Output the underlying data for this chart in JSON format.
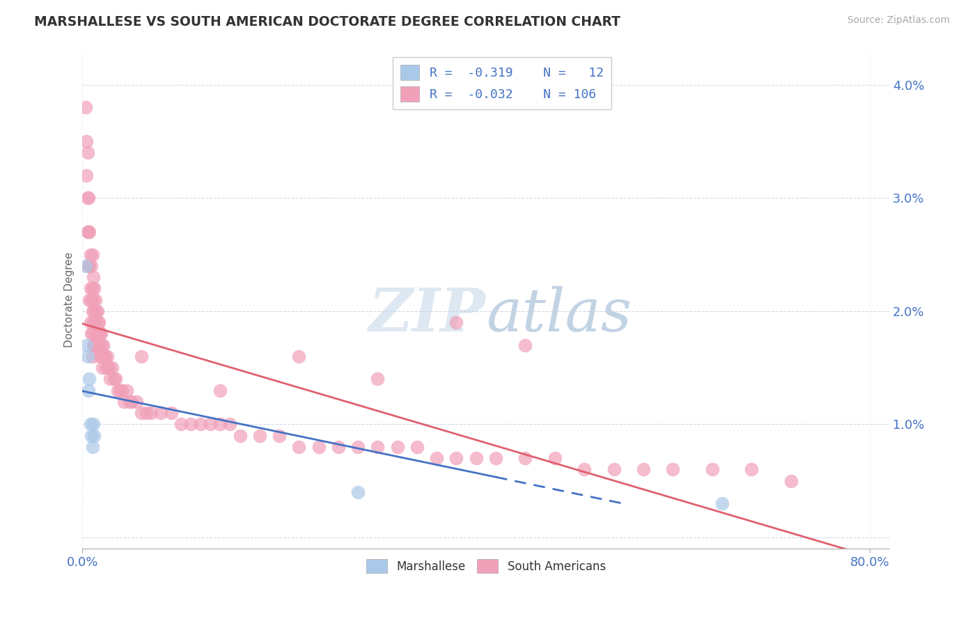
{
  "title": "MARSHALLESE VS SOUTH AMERICAN DOCTORATE DEGREE CORRELATION CHART",
  "source": "Source: ZipAtlas.com",
  "ylabel": "Doctorate Degree",
  "xlim": [
    0.0,
    0.82
  ],
  "ylim": [
    -0.001,
    0.043
  ],
  "xtick_positions": [
    0.0,
    0.8
  ],
  "xtick_labels": [
    "0.0%",
    "80.0%"
  ],
  "ytick_positions": [
    0.0,
    0.01,
    0.02,
    0.03,
    0.04
  ],
  "ytick_labels": [
    "",
    "1.0%",
    "2.0%",
    "3.0%",
    "4.0%"
  ],
  "color_marshallese_dot": "#aac8e8",
  "color_south_american_dot": "#f0a0b8",
  "color_line_marshallese": "#4472c4",
  "color_line_south_american": "#e06070",
  "color_grid": "#c8d4e4",
  "color_title": "#333333",
  "color_axis_text": "#4472c4",
  "legend_r1": "R =  -0.319",
  "legend_n1": "N =   12",
  "legend_r2": "R =  -0.032",
  "legend_n2": "N = 106",
  "watermark_color": "#dce6f0",
  "marsh_x": [
    0.003,
    0.004,
    0.005,
    0.006,
    0.007,
    0.008,
    0.009,
    0.01,
    0.011,
    0.012,
    0.28,
    0.65
  ],
  "marsh_y": [
    0.024,
    0.017,
    0.016,
    0.013,
    0.014,
    0.01,
    0.009,
    0.008,
    0.01,
    0.009,
    0.004,
    0.003
  ],
  "sa_x": [
    0.003,
    0.004,
    0.004,
    0.005,
    0.005,
    0.005,
    0.006,
    0.006,
    0.006,
    0.007,
    0.007,
    0.007,
    0.008,
    0.008,
    0.008,
    0.009,
    0.009,
    0.009,
    0.01,
    0.01,
    0.01,
    0.01,
    0.01,
    0.011,
    0.011,
    0.011,
    0.011,
    0.012,
    0.012,
    0.012,
    0.013,
    0.013,
    0.013,
    0.014,
    0.014,
    0.015,
    0.015,
    0.016,
    0.016,
    0.017,
    0.017,
    0.018,
    0.018,
    0.019,
    0.019,
    0.02,
    0.02,
    0.021,
    0.022,
    0.023,
    0.024,
    0.025,
    0.026,
    0.027,
    0.028,
    0.03,
    0.032,
    0.034,
    0.036,
    0.038,
    0.04,
    0.042,
    0.045,
    0.048,
    0.05,
    0.055,
    0.06,
    0.065,
    0.07,
    0.08,
    0.09,
    0.1,
    0.11,
    0.12,
    0.13,
    0.14,
    0.15,
    0.16,
    0.18,
    0.2,
    0.22,
    0.24,
    0.26,
    0.28,
    0.3,
    0.32,
    0.34,
    0.36,
    0.38,
    0.4,
    0.42,
    0.45,
    0.48,
    0.51,
    0.54,
    0.57,
    0.6,
    0.64,
    0.68,
    0.72,
    0.45,
    0.38,
    0.3,
    0.22,
    0.14,
    0.06
  ],
  "sa_y": [
    0.038,
    0.035,
    0.032,
    0.034,
    0.03,
    0.027,
    0.03,
    0.027,
    0.024,
    0.027,
    0.024,
    0.021,
    0.025,
    0.022,
    0.019,
    0.024,
    0.021,
    0.018,
    0.025,
    0.022,
    0.02,
    0.018,
    0.016,
    0.023,
    0.021,
    0.019,
    0.017,
    0.022,
    0.02,
    0.017,
    0.021,
    0.019,
    0.017,
    0.02,
    0.018,
    0.02,
    0.018,
    0.019,
    0.017,
    0.019,
    0.017,
    0.018,
    0.016,
    0.018,
    0.016,
    0.017,
    0.015,
    0.017,
    0.016,
    0.016,
    0.015,
    0.016,
    0.015,
    0.015,
    0.014,
    0.015,
    0.014,
    0.014,
    0.013,
    0.013,
    0.013,
    0.012,
    0.013,
    0.012,
    0.012,
    0.012,
    0.011,
    0.011,
    0.011,
    0.011,
    0.011,
    0.01,
    0.01,
    0.01,
    0.01,
    0.01,
    0.01,
    0.009,
    0.009,
    0.009,
    0.008,
    0.008,
    0.008,
    0.008,
    0.008,
    0.008,
    0.008,
    0.007,
    0.007,
    0.007,
    0.007,
    0.007,
    0.007,
    0.006,
    0.006,
    0.006,
    0.006,
    0.006,
    0.006,
    0.005,
    0.017,
    0.019,
    0.014,
    0.016,
    0.013,
    0.016
  ]
}
